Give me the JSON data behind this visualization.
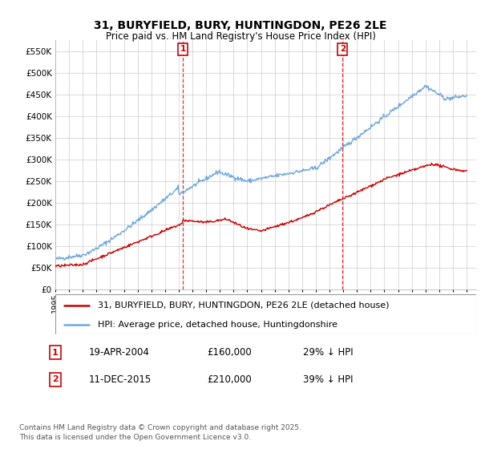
{
  "title": "31, BURYFIELD, BURY, HUNTINGDON, PE26 2LE",
  "subtitle": "Price paid vs. HM Land Registry's House Price Index (HPI)",
  "ylim": [
    0,
    575000
  ],
  "yticks": [
    0,
    50000,
    100000,
    150000,
    200000,
    250000,
    300000,
    350000,
    400000,
    450000,
    500000,
    550000
  ],
  "hpi_color": "#6fa8dc",
  "price_color": "#cc0000",
  "marker1_year": 2004.3,
  "marker2_year": 2015.95,
  "annotation1": {
    "date": "19-APR-2004",
    "price": "£160,000",
    "pct": "29% ↓ HPI"
  },
  "annotation2": {
    "date": "11-DEC-2015",
    "price": "£210,000",
    "pct": "39% ↓ HPI"
  },
  "legend_line1": "31, BURYFIELD, BURY, HUNTINGDON, PE26 2LE (detached house)",
  "legend_line2": "HPI: Average price, detached house, Huntingdonshire",
  "footnote": "Contains HM Land Registry data © Crown copyright and database right 2025.\nThis data is licensed under the Open Government Licence v3.0.",
  "grid_color": "#cccccc",
  "plot_bg": "#ffffff",
  "fig_bg": "#ffffff"
}
